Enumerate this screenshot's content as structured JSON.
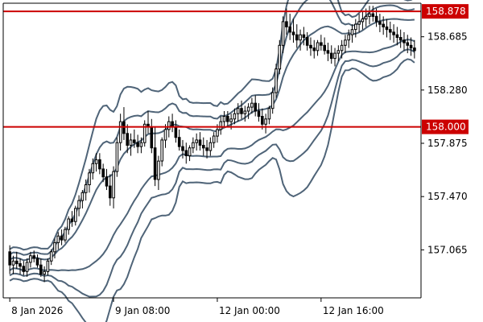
{
  "chart_data": {
    "type": "candlestick",
    "y_ticks": [
      "158.685",
      "158.280",
      "157.875",
      "157.470",
      "157.065"
    ],
    "y_tick_values": [
      158.685,
      158.28,
      157.875,
      157.47,
      157.065
    ],
    "x_ticks": [
      "8 Jan 2026",
      "9 Jan 08:00",
      "12 Jan 00:00",
      "12 Jan 16:00"
    ],
    "x_tick_bar_index": [
      0,
      30,
      60,
      90
    ],
    "ylim": [
      156.7,
      158.94
    ],
    "bar_count": 118,
    "grid": false,
    "horizontal_lines": [
      {
        "label": "158.878",
        "value": 158.878,
        "color": "#cc0000"
      },
      {
        "label": "158.000",
        "value": 158.0,
        "color": "#cc0000"
      }
    ],
    "bands": {
      "color": "#4f6478",
      "period": 20,
      "deviations": [
        1,
        2,
        3
      ]
    },
    "candles": [
      [
        157.05,
        157.1,
        156.88,
        156.95
      ],
      [
        156.95,
        157.02,
        156.88,
        156.98
      ],
      [
        156.98,
        157.05,
        156.92,
        156.96
      ],
      [
        156.96,
        157.0,
        156.88,
        156.94
      ],
      [
        156.94,
        156.98,
        156.87,
        156.9
      ],
      [
        156.9,
        157.0,
        156.86,
        156.97
      ],
      [
        156.97,
        157.05,
        156.93,
        157.02
      ],
      [
        157.02,
        157.06,
        156.97,
        157.0
      ],
      [
        157.0,
        157.03,
        156.93,
        156.95
      ],
      [
        156.95,
        157.0,
        156.86,
        156.88
      ],
      [
        156.88,
        156.94,
        156.82,
        156.9
      ],
      [
        156.9,
        157.0,
        156.87,
        156.98
      ],
      [
        156.98,
        157.07,
        156.95,
        157.05
      ],
      [
        157.05,
        157.15,
        157.0,
        157.12
      ],
      [
        157.12,
        157.2,
        157.07,
        157.17
      ],
      [
        157.17,
        157.22,
        157.1,
        157.14
      ],
      [
        157.14,
        157.24,
        157.12,
        157.22
      ],
      [
        157.22,
        157.32,
        157.18,
        157.3
      ],
      [
        157.3,
        157.36,
        157.24,
        157.28
      ],
      [
        157.28,
        157.4,
        157.25,
        157.38
      ],
      [
        157.38,
        157.48,
        157.32,
        157.44
      ],
      [
        157.44,
        157.52,
        157.38,
        157.5
      ],
      [
        157.5,
        157.6,
        157.44,
        157.56
      ],
      [
        157.56,
        157.68,
        157.5,
        157.65
      ],
      [
        157.65,
        157.76,
        157.6,
        157.72
      ],
      [
        157.72,
        157.8,
        157.66,
        157.75
      ],
      [
        157.75,
        157.8,
        157.64,
        157.68
      ],
      [
        157.68,
        157.72,
        157.58,
        157.62
      ],
      [
        157.62,
        157.68,
        157.52,
        157.55
      ],
      [
        157.55,
        157.64,
        157.4,
        157.46
      ],
      [
        157.46,
        157.7,
        157.38,
        157.66
      ],
      [
        157.66,
        157.92,
        157.62,
        157.88
      ],
      [
        157.88,
        158.1,
        157.82,
        158.04
      ],
      [
        158.04,
        158.15,
        157.9,
        157.95
      ],
      [
        157.95,
        158.02,
        157.8,
        157.86
      ],
      [
        157.86,
        157.95,
        157.78,
        157.9
      ],
      [
        157.9,
        157.98,
        157.84,
        157.88
      ],
      [
        157.88,
        157.94,
        157.8,
        157.85
      ],
      [
        157.85,
        157.92,
        157.8,
        157.88
      ],
      [
        157.88,
        158.05,
        157.85,
        158.02
      ],
      [
        158.02,
        158.12,
        157.95,
        158.0
      ],
      [
        158.0,
        158.06,
        157.8,
        157.84
      ],
      [
        157.84,
        158.0,
        157.55,
        157.6
      ],
      [
        157.6,
        157.78,
        157.52,
        157.74
      ],
      [
        157.74,
        157.92,
        157.7,
        157.9
      ],
      [
        157.9,
        158.02,
        157.84,
        157.98
      ],
      [
        157.98,
        158.08,
        157.92,
        158.04
      ],
      [
        158.04,
        158.1,
        157.96,
        158.0
      ],
      [
        158.0,
        158.05,
        157.88,
        157.92
      ],
      [
        157.92,
        157.98,
        157.82,
        157.85
      ],
      [
        157.85,
        157.9,
        157.76,
        157.82
      ],
      [
        157.82,
        157.88,
        157.72,
        157.78
      ],
      [
        157.78,
        157.86,
        157.74,
        157.84
      ],
      [
        157.84,
        157.92,
        157.8,
        157.88
      ],
      [
        157.88,
        157.95,
        157.82,
        157.9
      ],
      [
        157.9,
        157.96,
        157.82,
        157.86
      ],
      [
        157.86,
        157.92,
        157.78,
        157.84
      ],
      [
        157.84,
        157.9,
        157.76,
        157.82
      ],
      [
        157.82,
        157.92,
        157.78,
        157.88
      ],
      [
        157.88,
        157.96,
        157.84,
        157.93
      ],
      [
        157.93,
        158.02,
        157.88,
        157.98
      ],
      [
        157.98,
        158.08,
        157.94,
        158.04
      ],
      [
        158.04,
        158.12,
        158.0,
        158.08
      ],
      [
        158.08,
        158.12,
        158.0,
        158.04
      ],
      [
        158.04,
        158.1,
        157.98,
        158.06
      ],
      [
        158.06,
        158.14,
        158.02,
        158.1
      ],
      [
        158.1,
        158.18,
        158.04,
        158.14
      ],
      [
        158.14,
        158.2,
        158.06,
        158.1
      ],
      [
        158.1,
        158.16,
        158.04,
        158.12
      ],
      [
        158.12,
        158.18,
        158.06,
        158.15
      ],
      [
        158.15,
        158.22,
        158.1,
        158.18
      ],
      [
        158.18,
        158.24,
        158.08,
        158.12
      ],
      [
        158.12,
        158.18,
        158.04,
        158.08
      ],
      [
        158.08,
        158.14,
        157.98,
        158.02
      ],
      [
        158.02,
        158.1,
        157.95,
        158.06
      ],
      [
        158.06,
        158.16,
        158.02,
        158.14
      ],
      [
        158.14,
        158.3,
        158.1,
        158.26
      ],
      [
        158.26,
        158.48,
        158.22,
        158.44
      ],
      [
        158.44,
        158.66,
        158.4,
        158.62
      ],
      [
        158.62,
        158.84,
        158.56,
        158.8
      ],
      [
        158.8,
        158.9,
        158.7,
        158.76
      ],
      [
        158.76,
        158.86,
        158.66,
        158.72
      ],
      [
        158.72,
        158.82,
        158.64,
        158.7
      ],
      [
        158.7,
        158.78,
        158.6,
        158.66
      ],
      [
        158.66,
        158.74,
        158.58,
        158.7
      ],
      [
        158.7,
        158.76,
        158.62,
        158.68
      ],
      [
        158.68,
        158.72,
        158.58,
        158.62
      ],
      [
        158.62,
        158.68,
        158.54,
        158.6
      ],
      [
        158.6,
        158.66,
        158.52,
        158.58
      ],
      [
        158.58,
        158.66,
        158.54,
        158.64
      ],
      [
        158.64,
        158.7,
        158.58,
        158.62
      ],
      [
        158.62,
        158.68,
        158.55,
        158.58
      ],
      [
        158.58,
        158.64,
        158.5,
        158.56
      ],
      [
        158.56,
        158.62,
        158.48,
        158.52
      ],
      [
        158.52,
        158.6,
        158.46,
        158.56
      ],
      [
        158.56,
        158.62,
        158.5,
        158.58
      ],
      [
        158.58,
        158.66,
        158.52,
        158.62
      ],
      [
        158.62,
        158.7,
        158.56,
        158.66
      ],
      [
        158.66,
        158.74,
        158.6,
        158.7
      ],
      [
        158.7,
        158.78,
        158.64,
        158.74
      ],
      [
        158.74,
        158.82,
        158.68,
        158.78
      ],
      [
        158.78,
        158.86,
        158.72,
        158.8
      ],
      [
        158.8,
        158.88,
        158.74,
        158.82
      ],
      [
        158.82,
        158.9,
        158.76,
        158.84
      ],
      [
        158.84,
        158.92,
        158.78,
        158.86
      ],
      [
        158.86,
        158.92,
        158.8,
        158.84
      ],
      [
        158.84,
        158.9,
        158.76,
        158.8
      ],
      [
        158.8,
        158.86,
        158.72,
        158.78
      ],
      [
        158.78,
        158.84,
        158.7,
        158.76
      ],
      [
        158.76,
        158.82,
        158.68,
        158.74
      ],
      [
        158.74,
        158.8,
        158.66,
        158.72
      ],
      [
        158.72,
        158.78,
        158.64,
        158.7
      ],
      [
        158.7,
        158.76,
        158.62,
        158.68
      ],
      [
        158.68,
        158.74,
        158.6,
        158.66
      ],
      [
        158.66,
        158.72,
        158.58,
        158.64
      ],
      [
        158.64,
        158.7,
        158.56,
        158.62
      ],
      [
        158.62,
        158.68,
        158.54,
        158.6
      ],
      [
        158.6,
        158.66,
        158.52,
        158.58
      ]
    ]
  }
}
